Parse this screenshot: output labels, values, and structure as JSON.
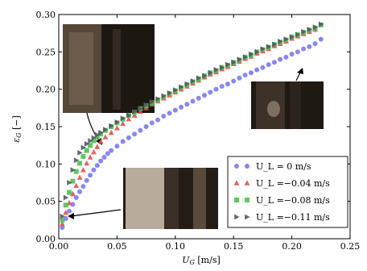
{
  "chart_data": {
    "type": "scatter",
    "xlabel": "U_G [m/s]",
    "ylabel": "ε_G [−]",
    "xlim": [
      0,
      0.25
    ],
    "ylim": [
      0,
      0.3
    ],
    "xticks": [
      "0.00",
      "0.05",
      "0.10",
      "0.15",
      "0.20",
      "0.25"
    ],
    "yticks": [
      "0.00",
      "0.05",
      "0.10",
      "0.15",
      "0.20",
      "0.25",
      "0.30"
    ],
    "grid": false,
    "legend_position": "bottom-right",
    "series": [
      {
        "name": "U_L = 0 m/s",
        "marker": "circle",
        "color": "#7b7bf2",
        "x": [
          0.003,
          0.006,
          0.009,
          0.012,
          0.015,
          0.018,
          0.021,
          0.024,
          0.027,
          0.03,
          0.033,
          0.036,
          0.039,
          0.042,
          0.045,
          0.05,
          0.055,
          0.06,
          0.065,
          0.07,
          0.075,
          0.08,
          0.085,
          0.09,
          0.095,
          0.1,
          0.105,
          0.11,
          0.115,
          0.12,
          0.125,
          0.13,
          0.135,
          0.14,
          0.145,
          0.15,
          0.155,
          0.16,
          0.165,
          0.17,
          0.175,
          0.18,
          0.185,
          0.19,
          0.195,
          0.2,
          0.205,
          0.21,
          0.215,
          0.22,
          0.225
        ],
        "y": [
          0.015,
          0.027,
          0.037,
          0.046,
          0.055,
          0.063,
          0.07,
          0.078,
          0.085,
          0.092,
          0.098,
          0.104,
          0.109,
          0.114,
          0.118,
          0.124,
          0.13,
          0.135,
          0.14,
          0.145,
          0.15,
          0.155,
          0.159,
          0.164,
          0.168,
          0.172,
          0.176,
          0.18,
          0.184,
          0.188,
          0.192,
          0.196,
          0.2,
          0.204,
          0.207,
          0.211,
          0.215,
          0.219,
          0.222,
          0.226,
          0.229,
          0.233,
          0.236,
          0.24,
          0.243,
          0.247,
          0.25,
          0.254,
          0.257,
          0.261,
          0.267
        ]
      },
      {
        "name": "U_L =−0.04 m/s",
        "marker": "triangle-up",
        "color": "#e05050",
        "x": [
          0.003,
          0.006,
          0.009,
          0.012,
          0.015,
          0.018,
          0.021,
          0.024,
          0.027,
          0.03,
          0.033,
          0.036,
          0.04,
          0.045,
          0.05,
          0.055,
          0.06,
          0.065,
          0.07,
          0.075,
          0.08,
          0.085,
          0.09,
          0.095,
          0.1,
          0.105,
          0.11,
          0.115,
          0.12,
          0.125,
          0.13,
          0.135,
          0.14,
          0.145,
          0.15,
          0.155,
          0.16,
          0.165,
          0.17,
          0.175,
          0.18,
          0.185,
          0.19,
          0.195,
          0.2,
          0.205,
          0.21,
          0.215,
          0.22
        ],
        "y": [
          0.02,
          0.035,
          0.048,
          0.06,
          0.071,
          0.082,
          0.092,
          0.101,
          0.109,
          0.116,
          0.123,
          0.13,
          0.136,
          0.142,
          0.148,
          0.154,
          0.16,
          0.165,
          0.17,
          0.175,
          0.18,
          0.184,
          0.188,
          0.192,
          0.196,
          0.2,
          0.204,
          0.208,
          0.212,
          0.216,
          0.22,
          0.223,
          0.227,
          0.23,
          0.234,
          0.237,
          0.241,
          0.244,
          0.248,
          0.251,
          0.254,
          0.258,
          0.261,
          0.264,
          0.268,
          0.271,
          0.274,
          0.277,
          0.28
        ]
      },
      {
        "name": "U_L =−0.08 m/s",
        "marker": "square",
        "color": "#4ec24e",
        "x": [
          0.003,
          0.006,
          0.009,
          0.012,
          0.015,
          0.018,
          0.021,
          0.024,
          0.027,
          0.03,
          0.033,
          0.036,
          0.04,
          0.045,
          0.05,
          0.055,
          0.06,
          0.065,
          0.07,
          0.075,
          0.08,
          0.085,
          0.09,
          0.095,
          0.1,
          0.105,
          0.11,
          0.115,
          0.12,
          0.125,
          0.13,
          0.135,
          0.14,
          0.145,
          0.15,
          0.155,
          0.16,
          0.165,
          0.17,
          0.175,
          0.18,
          0.185,
          0.19,
          0.195,
          0.2,
          0.205,
          0.21,
          0.215,
          0.22,
          0.225
        ],
        "y": [
          0.025,
          0.045,
          0.062,
          0.077,
          0.09,
          0.101,
          0.11,
          0.118,
          0.125,
          0.131,
          0.136,
          0.14,
          0.145,
          0.15,
          0.155,
          0.16,
          0.165,
          0.169,
          0.174,
          0.178,
          0.182,
          0.186,
          0.19,
          0.194,
          0.198,
          0.202,
          0.206,
          0.21,
          0.214,
          0.218,
          0.222,
          0.225,
          0.229,
          0.232,
          0.236,
          0.239,
          0.243,
          0.246,
          0.25,
          0.253,
          0.256,
          0.26,
          0.263,
          0.266,
          0.27,
          0.273,
          0.276,
          0.279,
          0.282,
          0.286
        ]
      },
      {
        "name": "U_L =−0.11 m/s",
        "marker": "triangle-right",
        "color": "#555566",
        "x": [
          0.003,
          0.006,
          0.009,
          0.012,
          0.015,
          0.018,
          0.021,
          0.024,
          0.027,
          0.03,
          0.033,
          0.036,
          0.04,
          0.045,
          0.05,
          0.055,
          0.06,
          0.065,
          0.07,
          0.075,
          0.08,
          0.085,
          0.09,
          0.095,
          0.1,
          0.105,
          0.11,
          0.115,
          0.12,
          0.125,
          0.13,
          0.135,
          0.14,
          0.145,
          0.15,
          0.155,
          0.16,
          0.165,
          0.17,
          0.175,
          0.18,
          0.185,
          0.19,
          0.195,
          0.2,
          0.205,
          0.21,
          0.215,
          0.22,
          0.225
        ],
        "y": [
          0.03,
          0.055,
          0.075,
          0.092,
          0.105,
          0.115,
          0.122,
          0.127,
          0.131,
          0.135,
          0.139,
          0.142,
          0.146,
          0.151,
          0.156,
          0.161,
          0.165,
          0.17,
          0.174,
          0.179,
          0.183,
          0.187,
          0.191,
          0.195,
          0.199,
          0.203,
          0.207,
          0.211,
          0.215,
          0.218,
          0.222,
          0.226,
          0.229,
          0.233,
          0.236,
          0.24,
          0.243,
          0.247,
          0.25,
          0.254,
          0.257,
          0.26,
          0.264,
          0.267,
          0.27,
          0.273,
          0.277,
          0.28,
          0.283,
          0.287
        ]
      }
    ]
  }
}
